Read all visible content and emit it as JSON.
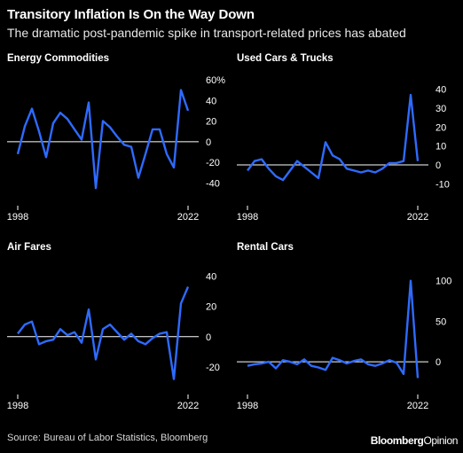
{
  "title": "Transitory Inflation Is On the Way Down",
  "subtitle": "The dramatic post-pandemic spike in transport-related prices has abated",
  "source": "Source: Bureau of Labor Statistics, Bloomberg",
  "brand": {
    "part1": "Bloomberg",
    "part2": "Opinion"
  },
  "colors": {
    "line": "#2e6bff",
    "zero": "#ffffff",
    "background": "#000000"
  },
  "chart_data": [
    {
      "type": "line",
      "title": "Energy Commodities",
      "x_ticks": [
        "1998",
        "2022"
      ],
      "y_ticks": [
        "60%",
        "40",
        "20",
        "0",
        "-20",
        "-40"
      ],
      "ylim": [
        -50,
        60
      ],
      "series": [
        {
          "x": [
            1998,
            1999,
            2000,
            2001,
            2002,
            2003,
            2004,
            2005,
            2006,
            2007,
            2008,
            2009,
            2010,
            2011,
            2012,
            2013,
            2014,
            2015,
            2016,
            2017,
            2018,
            2019,
            2020,
            2021,
            2022
          ],
          "values": [
            -12,
            15,
            32,
            10,
            -15,
            18,
            28,
            22,
            12,
            2,
            38,
            -45,
            20,
            14,
            5,
            -3,
            -5,
            -35,
            -12,
            12,
            12,
            -12,
            -25,
            50,
            30
          ]
        }
      ]
    },
    {
      "type": "line",
      "title": "Used Cars & Trucks",
      "x_ticks": [
        "1998",
        "2022"
      ],
      "y_ticks": [
        "40",
        "30",
        "20",
        "10",
        "0",
        "-10"
      ],
      "ylim": [
        -15,
        45
      ],
      "series": [
        {
          "x": [
            1998,
            1999,
            2000,
            2001,
            2002,
            2003,
            2004,
            2005,
            2006,
            2007,
            2008,
            2009,
            2010,
            2011,
            2012,
            2013,
            2014,
            2015,
            2016,
            2017,
            2018,
            2019,
            2020,
            2021,
            2022
          ],
          "values": [
            -3,
            2,
            3,
            -2,
            -6,
            -8,
            -3,
            2,
            -1,
            -4,
            -7,
            12,
            5,
            3,
            -2,
            -3,
            -4,
            -3,
            -4,
            -2,
            1,
            1,
            2,
            37,
            2
          ]
        }
      ]
    },
    {
      "type": "line",
      "title": "Air Fares",
      "x_ticks": [
        "1998",
        "2022"
      ],
      "y_ticks": [
        "40",
        "20",
        "0",
        "-20"
      ],
      "ylim": [
        -30,
        45
      ],
      "series": [
        {
          "x": [
            1998,
            1999,
            2000,
            2001,
            2002,
            2003,
            2004,
            2005,
            2006,
            2007,
            2008,
            2009,
            2010,
            2011,
            2012,
            2013,
            2014,
            2015,
            2016,
            2017,
            2018,
            2019,
            2020,
            2021,
            2022
          ],
          "values": [
            2,
            8,
            10,
            -5,
            -3,
            -2,
            5,
            1,
            3,
            -4,
            18,
            -15,
            5,
            8,
            3,
            -2,
            2,
            -3,
            -5,
            -1,
            2,
            3,
            -28,
            22,
            33
          ]
        }
      ]
    },
    {
      "type": "line",
      "title": "Rental Cars",
      "x_ticks": [
        "1998",
        "2022"
      ],
      "y_ticks": [
        "100",
        "50",
        "0"
      ],
      "ylim": [
        -25,
        115
      ],
      "series": [
        {
          "x": [
            1998,
            1999,
            2000,
            2001,
            2002,
            2003,
            2004,
            2005,
            2006,
            2007,
            2008,
            2009,
            2010,
            2011,
            2012,
            2013,
            2014,
            2015,
            2016,
            2017,
            2018,
            2019,
            2020,
            2021,
            2022
          ],
          "values": [
            -5,
            -3,
            -2,
            0,
            -8,
            2,
            0,
            -3,
            3,
            -5,
            -7,
            -10,
            5,
            2,
            -2,
            1,
            3,
            -3,
            -5,
            -2,
            2,
            -1,
            -15,
            100,
            -20
          ]
        }
      ]
    }
  ]
}
